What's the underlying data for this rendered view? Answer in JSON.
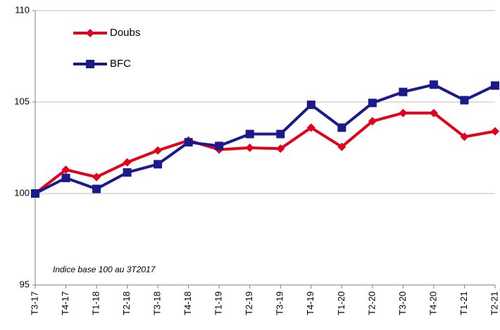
{
  "chart_data": {
    "type": "line",
    "categories": [
      "T3-17",
      "T4-17",
      "T1-18",
      "T2-18",
      "T3-18",
      "T4-18",
      "T1-19",
      "T2-19",
      "T3-19",
      "T4-19",
      "T1-20",
      "T2-20",
      "T3-20",
      "T4-20",
      "T1-21",
      "T2-21"
    ],
    "series": [
      {
        "name": "Doubs",
        "color": "#e3001b",
        "marker": "diamond",
        "values": [
          100,
          101.3,
          100.9,
          101.7,
          102.35,
          102.9,
          102.4,
          102.5,
          102.45,
          103.6,
          102.55,
          103.95,
          104.4,
          104.4,
          103.1,
          103.4
        ]
      },
      {
        "name": "BFC",
        "color": "#1a1a8c",
        "marker": "square",
        "values": [
          100,
          100.85,
          100.25,
          101.15,
          101.6,
          102.8,
          102.6,
          103.25,
          103.25,
          104.85,
          103.6,
          104.95,
          105.55,
          105.95,
          105.1,
          105.9
        ]
      }
    ],
    "annotation": "Indice base 100 au 3T2017",
    "ylim": [
      95,
      110
    ],
    "yticks": [
      95,
      100,
      105,
      110
    ],
    "grid": true,
    "legend": "top-left"
  }
}
